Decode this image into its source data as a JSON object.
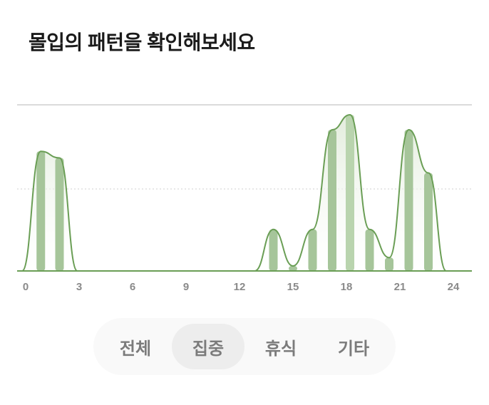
{
  "title": "몰입의 패턴을 확인해보세요",
  "tabs": [
    {
      "label": "전체",
      "active": false
    },
    {
      "label": "집중",
      "active": true
    },
    {
      "label": "휴식",
      "active": false
    },
    {
      "label": "기타",
      "active": false
    }
  ],
  "colors": {
    "line": "#6a9e55",
    "bar": "#a6c59a",
    "bar_highlight": "#b9d4ae",
    "fill": "#e3eedd",
    "grid": "#cccccc"
  },
  "chart_data": {
    "type": "bar",
    "xlim": [
      0,
      24
    ],
    "ylim": [
      0,
      1
    ],
    "x_ticks": [
      "0",
      "3",
      "6",
      "9",
      "12",
      "15",
      "18",
      "21",
      "24"
    ],
    "grid": true,
    "bars": [
      {
        "x": 0.85,
        "value": 0.72
      },
      {
        "x": 1.9,
        "value": 0.68
      },
      {
        "x": 13.9,
        "value": 0.25
      },
      {
        "x": 15.0,
        "value": 0.03
      },
      {
        "x": 16.1,
        "value": 0.25
      },
      {
        "x": 17.2,
        "value": 0.85
      },
      {
        "x": 18.2,
        "value": 0.94,
        "highlight": true
      },
      {
        "x": 19.3,
        "value": 0.25
      },
      {
        "x": 20.4,
        "value": 0.08
      },
      {
        "x": 21.5,
        "value": 0.85
      },
      {
        "x": 22.6,
        "value": 0.59
      }
    ]
  }
}
